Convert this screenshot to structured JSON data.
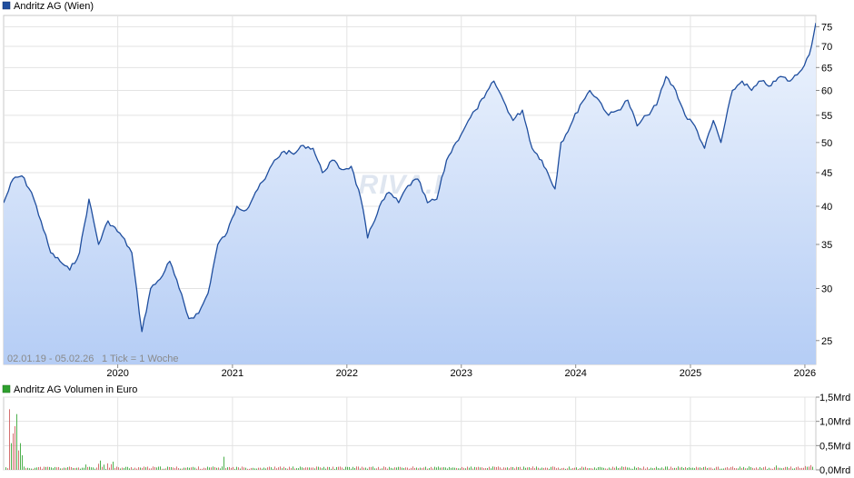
{
  "chart_data": [
    {
      "type": "area",
      "legend": "Andritz AG (Wien)",
      "colors": {
        "line": "#1f4e9e",
        "fill_top": "#eef4fd",
        "fill_bottom": "#b5cdf5",
        "legend_marker": "#1f4e9e"
      },
      "scale": "log",
      "ylim": [
        23,
        78
      ],
      "y_ticks": [
        25,
        30,
        35,
        40,
        45,
        50,
        55,
        60,
        65,
        70,
        75
      ],
      "x_range": [
        "2019-01-02",
        "2026-02-05"
      ],
      "x_ticks": [
        "2020",
        "2021",
        "2022",
        "2023",
        "2024",
        "2025",
        "2026"
      ],
      "range_label": "02.01.19 - 05.02.26",
      "tick_label": "1 Tick = 1 Woche",
      "watermark": "ARIVA.DE",
      "grid": true,
      "x": [
        "2019-01-02",
        "2019-02-01",
        "2019-03-01",
        "2019-04-01",
        "2019-05-01",
        "2019-06-01",
        "2019-07-01",
        "2019-08-01",
        "2019-09-01",
        "2019-10-01",
        "2019-11-01",
        "2019-12-01",
        "2020-01-15",
        "2020-02-15",
        "2020-03-18",
        "2020-04-15",
        "2020-05-15",
        "2020-06-15",
        "2020-07-15",
        "2020-08-15",
        "2020-09-15",
        "2020-10-15",
        "2020-11-15",
        "2020-12-15",
        "2021-01-15",
        "2021-02-15",
        "2021-03-15",
        "2021-04-15",
        "2021-05-15",
        "2021-06-15",
        "2021-07-15",
        "2021-08-15",
        "2021-09-15",
        "2021-10-15",
        "2021-11-15",
        "2021-12-15",
        "2022-01-15",
        "2022-02-15",
        "2022-03-08",
        "2022-04-15",
        "2022-05-15",
        "2022-06-15",
        "2022-07-15",
        "2022-08-15",
        "2022-09-15",
        "2022-10-15",
        "2022-11-15",
        "2022-12-15",
        "2023-01-15",
        "2023-02-15",
        "2023-03-15",
        "2023-04-15",
        "2023-05-15",
        "2023-06-15",
        "2023-07-15",
        "2023-08-15",
        "2023-09-15",
        "2023-10-27",
        "2023-11-15",
        "2023-12-15",
        "2024-01-15",
        "2024-02-15",
        "2024-03-15",
        "2024-04-15",
        "2024-05-15",
        "2024-06-15",
        "2024-07-15",
        "2024-08-15",
        "2024-09-15",
        "2024-10-15",
        "2024-11-15",
        "2024-12-15",
        "2025-01-15",
        "2025-02-15",
        "2025-03-15",
        "2025-04-08",
        "2025-05-15",
        "2025-06-15",
        "2025-07-15",
        "2025-08-15",
        "2025-09-15",
        "2025-10-15",
        "2025-11-15",
        "2025-12-15",
        "2026-01-15",
        "2026-02-05"
      ],
      "y": [
        40.5,
        44,
        44.5,
        42,
        38,
        34,
        33,
        32,
        34,
        41,
        35,
        38,
        36,
        34,
        25.8,
        30,
        31,
        33,
        30,
        27,
        27.5,
        29.5,
        35,
        36.5,
        40,
        39.5,
        42,
        44,
        47,
        48.5,
        48,
        49.5,
        49,
        45,
        47,
        45.5,
        46,
        41,
        35.8,
        40,
        42,
        40.5,
        43,
        44,
        40.5,
        41,
        47,
        50,
        53,
        56,
        58.5,
        62,
        58,
        54,
        56,
        49,
        47,
        42.5,
        50,
        53,
        57,
        60,
        58,
        55,
        56,
        58,
        53,
        55,
        57,
        63,
        60,
        55,
        53,
        49,
        54,
        50,
        60,
        62,
        60,
        62,
        61,
        63,
        62,
        64,
        68,
        76
      ]
    },
    {
      "type": "bar",
      "legend": "Andritz AG Volumen in Euro",
      "colors": {
        "up": "#3aa83a",
        "down": "#d06060",
        "legend_marker": "#2ea02e"
      },
      "ylim": [
        0,
        1.5
      ],
      "y_tick_labels": [
        "0,0Mrd",
        "0,5Mrd",
        "1,0Mrd",
        "1,5Mrd"
      ],
      "y_tick_values": [
        0,
        0.5,
        1.0,
        1.5
      ]
    }
  ]
}
